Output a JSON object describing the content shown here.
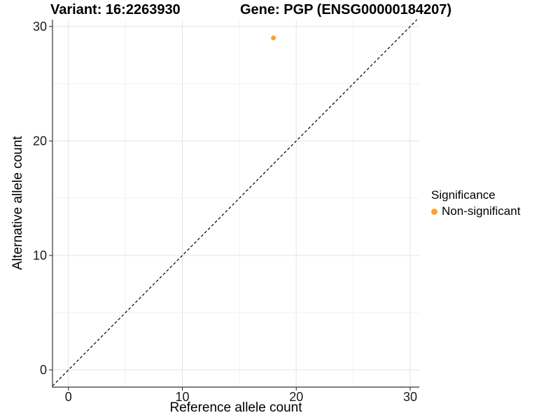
{
  "titles": {
    "left": "Variant: 16:2263930",
    "right": "Gene: PGP (ENSG00000184207)"
  },
  "chart_data": {
    "type": "scatter",
    "xlabel": "Reference allele count",
    "ylabel": "Alternative allele count",
    "xlim": [
      -1.4,
      30.8
    ],
    "ylim": [
      -1.5,
      30.6
    ],
    "xticks": [
      0,
      10,
      20,
      30
    ],
    "yticks": [
      0,
      10,
      20,
      30
    ],
    "minor_xticks": [
      5,
      15,
      25
    ],
    "minor_yticks": [
      5,
      15,
      25
    ],
    "grid": "major+minor",
    "identity_line": {
      "type": "dashed",
      "slope": 1,
      "intercept": 0,
      "color": "#000000"
    },
    "series": [
      {
        "name": "Non-significant",
        "color": "#FCA12F",
        "marker_size": 7,
        "points": [
          {
            "x": 18,
            "y": 29
          }
        ]
      }
    ],
    "legend": {
      "title": "Significance",
      "position": "right",
      "items": [
        {
          "label": "Non-significant",
          "color": "#FCA12F"
        }
      ]
    }
  },
  "colors": {
    "background": "#FFFFFF",
    "grid_major": "#E4E4E4",
    "grid_minor": "#F1F1F1",
    "axis_line": "#333333",
    "tick_label": "#1A1A1A",
    "point": "#FCA12F"
  }
}
